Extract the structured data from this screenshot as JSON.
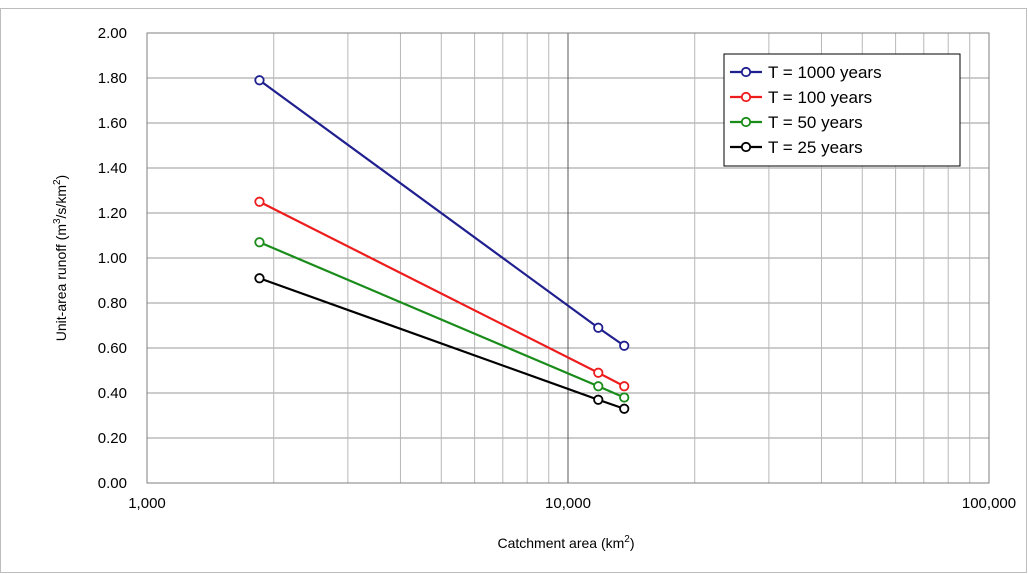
{
  "chart_data": {
    "type": "line",
    "x_scale": "log",
    "x_ticks": [
      "1,000",
      "10,000",
      "100,000"
    ],
    "y_ticks": [
      "0.00",
      "0.20",
      "0.40",
      "0.60",
      "0.80",
      "1.00",
      "1.20",
      "1.40",
      "1.60",
      "1.80",
      "2.00"
    ],
    "xlim": [
      1000,
      100000
    ],
    "ylim": [
      0,
      2
    ],
    "xlabel": "Catchment area (km",
    "xlabel_sup": "2",
    "xlabel_end": ")",
    "ylabel": "Unit-area runoff (m",
    "ylabel_sup1": "3",
    "ylabel_mid": "/s/km",
    "ylabel_sup2": "2",
    "ylabel_end": ")",
    "grid": true,
    "legend_position": "top-right",
    "series": [
      {
        "name": "T = 1000 years",
        "color": "#1f1f8f",
        "x": [
          1850,
          11800,
          13600
        ],
        "y": [
          1.79,
          0.69,
          0.61
        ]
      },
      {
        "name": "T = 100 years",
        "color": "#ee1c1c",
        "x": [
          1850,
          11800,
          13600
        ],
        "y": [
          1.25,
          0.49,
          0.43
        ]
      },
      {
        "name": "T = 50 years",
        "color": "#1a8c1a",
        "x": [
          1850,
          11800,
          13600
        ],
        "y": [
          1.07,
          0.43,
          0.38
        ]
      },
      {
        "name": "T = 25 years",
        "color": "#000000",
        "x": [
          1850,
          11800,
          13600
        ],
        "y": [
          0.91,
          0.37,
          0.33
        ]
      }
    ]
  }
}
